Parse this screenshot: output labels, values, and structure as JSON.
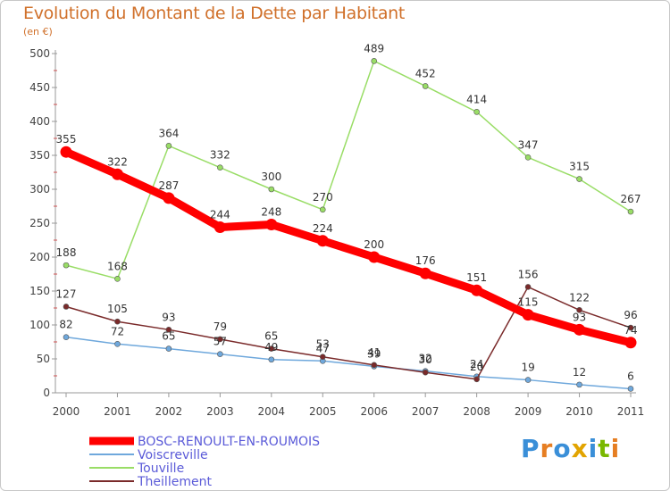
{
  "title": "Evolution du Montant de la Dette par Habitant",
  "subtitle": "(en €)",
  "logo": {
    "text": "Proxiti",
    "colors": [
      "#3a8fd8",
      "#e67e22",
      "#3a8fd8",
      "#e2a400",
      "#3a8fd8",
      "#7ab800",
      "#e67e22"
    ]
  },
  "chart_data": {
    "type": "line",
    "x": [
      "2000",
      "2001",
      "2002",
      "2003",
      "2004",
      "2005",
      "2006",
      "2007",
      "2008",
      "2009",
      "2010",
      "2011"
    ],
    "ylim": [
      0,
      500
    ],
    "yticks": [
      0,
      50,
      100,
      150,
      200,
      250,
      300,
      350,
      400,
      450,
      500
    ],
    "grid": false,
    "legend_position": "bottom-left",
    "series": [
      {
        "name": "BOSC-RENOULT-EN-ROUMOIS",
        "color": "#ff0000",
        "labels": true,
        "values": [
          355,
          322,
          287,
          244,
          248,
          224,
          200,
          176,
          151,
          115,
          93,
          74
        ]
      },
      {
        "name": "Voiscreville",
        "color": "#6fa8dc",
        "labels": true,
        "values": [
          82,
          72,
          65,
          57,
          49,
          47,
          39,
          32,
          24,
          19,
          12,
          6
        ]
      },
      {
        "name": "Touville",
        "color": "#99dd66",
        "labels": true,
        "values": [
          188,
          168,
          364,
          332,
          300,
          270,
          489,
          452,
          414,
          347,
          315,
          267
        ]
      },
      {
        "name": "Theillement",
        "color": "#7a2a2a",
        "labels": true,
        "values": [
          127,
          105,
          93,
          79,
          65,
          53,
          41,
          30,
          20,
          156,
          122,
          96
        ]
      }
    ]
  }
}
